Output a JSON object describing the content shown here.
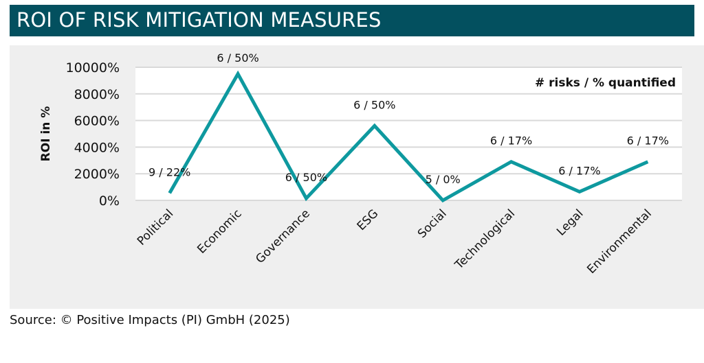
{
  "header": {
    "title": "ROI OF RISK MITIGATION MEASURES"
  },
  "footer": {
    "source": "Source: © Positive Impacts (PI) GmbH (2025)"
  },
  "colors": {
    "title_bar": "#03505f",
    "line": "#0e999f",
    "panel": "#efefef"
  },
  "chart_data": {
    "type": "line",
    "title": "ROI OF RISK MITIGATION MEASURES",
    "ylabel": "ROI in %",
    "xlabel": "",
    "ylim": [
      0,
      10000
    ],
    "yticks": [
      0,
      2000,
      4000,
      6000,
      8000,
      10000
    ],
    "ytick_labels": [
      "0%",
      "2000%",
      "4000%",
      "6000%",
      "8000%",
      "10000%"
    ],
    "grid": true,
    "annotation_title": "# risks / % quantified",
    "categories": [
      "Political",
      "Economic",
      "Governance",
      "ESG",
      "Social",
      "Technological",
      "Legal",
      "Environmental"
    ],
    "series": [
      {
        "name": "ROI",
        "values": [
          550,
          9500,
          150,
          5600,
          0,
          2900,
          650,
          2900
        ],
        "data_labels": [
          "9 / 22%",
          "6 / 50%",
          "6 / 50%",
          "6 / 50%",
          "5 / 0%",
          "6 / 17%",
          "6 / 17%",
          "6 / 17%"
        ]
      }
    ]
  }
}
